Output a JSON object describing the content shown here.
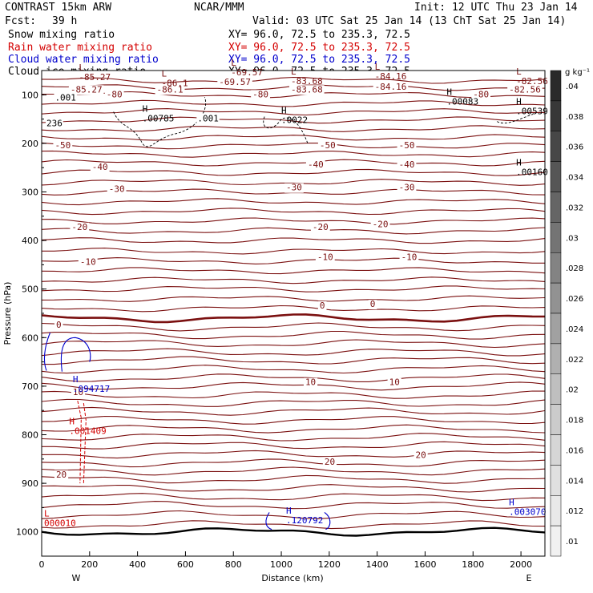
{
  "header": {
    "model": "CONTRAST 15km ARW",
    "center": "NCAR/MMM",
    "init": "Init: 12 UTC Thu 23 Jan 14",
    "fcst_label": "Fcst:",
    "fcst_value": "39 h",
    "valid": "Valid: 03 UTC Sat 25 Jan 14 (13 ChT Sat 25 Jan 14)"
  },
  "fields": [
    {
      "name": "Snow mixing ratio",
      "xy": "XY=  96.0, 72.5 to 235.3, 72.5",
      "color": "#000000"
    },
    {
      "name": "Rain water mixing ratio",
      "xy": "XY=  96.0, 72.5 to 235.3, 72.5",
      "color": "#d40000"
    },
    {
      "name": "Cloud water mixing ratio",
      "xy": "XY=  96.0, 72.5 to 235.3, 72.5",
      "color": "#0000cc"
    },
    {
      "name": "Cloud ice mixing ratio",
      "xy": "XY=  96.0, 72.5 to 235.3, 72.5",
      "color": "#000000"
    }
  ],
  "colorbar": {
    "unit": "g kg⁻¹",
    "levels": [
      "0.04",
      "0.038",
      "0.036",
      "0.034",
      "0.032",
      "0.03",
      "0.028",
      "0.026",
      "0.024",
      "0.022",
      "0.02",
      "0.018",
      "0.016",
      "0.014",
      "0.012",
      "0.01"
    ],
    "tick_labels": [
      ".04",
      ".038",
      ".036",
      ".034",
      ".032",
      ".03",
      ".028",
      ".026",
      ".024",
      ".022",
      ".02",
      ".018",
      ".016",
      ".014",
      ".012",
      ".01"
    ],
    "colors": [
      "#2a2a2a",
      "#383838",
      "#474747",
      "#565656",
      "#656565",
      "#747474",
      "#838383",
      "#929292",
      "#a1a1a1",
      "#b0b0b0",
      "#bfbfbf",
      "#cbcbcb",
      "#d6d6d6",
      "#e0e0e0",
      "#e9e9e9",
      "#f1f1f1"
    ]
  },
  "chart_data": {
    "type": "cross-section contour",
    "xlabel": "Distance (km)",
    "ylabel": "Pressure (hPa)",
    "xlim": [
      0,
      2100
    ],
    "ylim": [
      1050,
      50
    ],
    "x_ticks": [
      "0",
      "200",
      "400",
      "600",
      "800",
      "1000",
      "1200",
      "1400",
      "1600",
      "1800",
      "2000"
    ],
    "y_ticks": [
      "100",
      "200",
      "300",
      "400",
      "500",
      "600",
      "700",
      "800",
      "900",
      "1000"
    ],
    "x_end_labels": {
      "left": "W",
      "right": "E"
    },
    "temperature_contours": {
      "color": "#7b1010",
      "levels_hPa": [
        1000,
        985,
        965,
        945,
        928,
        910,
        892,
        875,
        858,
        840,
        822,
        805,
        788,
        770,
        752,
        735,
        718,
        700,
        683,
        665,
        647,
        630,
        612,
        595,
        578,
        560,
        540,
        520,
        500,
        482,
        462,
        442,
        422,
        400,
        380,
        360,
        340,
        320,
        300,
        280,
        260,
        240,
        222,
        205,
        188,
        170,
        152,
        135,
        118,
        100,
        85,
        70
      ],
      "labels": [
        {
          "text": "-85.27",
          "x": 120,
          "p": 95
        },
        {
          "text": "-86.1",
          "x": 480,
          "p": 95
        },
        {
          "text": "-69.57",
          "x": 740,
          "p": 80
        },
        {
          "text": "-83.68",
          "x": 1040,
          "p": 95
        },
        {
          "text": "-84.16",
          "x": 1390,
          "p": 90
        },
        {
          "text": "-82.56",
          "x": 1950,
          "p": 95
        },
        {
          "text": "-80",
          "x": 270,
          "p": 105
        },
        {
          "text": "-80",
          "x": 880,
          "p": 105
        },
        {
          "text": "-80",
          "x": 1800,
          "p": 105
        },
        {
          "text": "-50",
          "x": 55,
          "p": 210
        },
        {
          "text": "-50",
          "x": 1160,
          "p": 210
        },
        {
          "text": "-50",
          "x": 1490,
          "p": 210
        },
        {
          "text": "-40",
          "x": 210,
          "p": 255
        },
        {
          "text": "-40",
          "x": 1110,
          "p": 250
        },
        {
          "text": "-40",
          "x": 1490,
          "p": 250
        },
        {
          "text": "-30",
          "x": 280,
          "p": 300
        },
        {
          "text": "-30",
          "x": 1020,
          "p": 297
        },
        {
          "text": "-30",
          "x": 1490,
          "p": 297
        },
        {
          "text": "-20",
          "x": 125,
          "p": 378
        },
        {
          "text": "-20",
          "x": 1130,
          "p": 378
        },
        {
          "text": "-20",
          "x": 1380,
          "p": 373
        },
        {
          "text": "-10",
          "x": 160,
          "p": 450
        },
        {
          "text": "-10",
          "x": 1150,
          "p": 440
        },
        {
          "text": "-10",
          "x": 1500,
          "p": 440
        },
        {
          "text": "0",
          "x": 60,
          "p": 580
        },
        {
          "text": "0",
          "x": 1160,
          "p": 540
        },
        {
          "text": "0",
          "x": 1370,
          "p": 537
        },
        {
          "text": "10",
          "x": 130,
          "p": 718
        },
        {
          "text": "10",
          "x": 1100,
          "p": 698
        },
        {
          "text": "10",
          "x": 1450,
          "p": 698
        },
        {
          "text": "20",
          "x": 60,
          "p": 888
        },
        {
          "text": "20",
          "x": 1180,
          "p": 862
        },
        {
          "text": "20",
          "x": 1560,
          "p": 848
        }
      ]
    },
    "maxima": [
      {
        "mark": "L",
        "value": "-85.27",
        "x": 155,
        "p": 70,
        "color": "#7b1010"
      },
      {
        "mark": "L",
        "value": "-86.1",
        "x": 500,
        "p": 82,
        "color": "#7b1010"
      },
      {
        "mark": "L",
        "value": "-69.57",
        "x": 790,
        "p": 60,
        "color": "#7b1010"
      },
      {
        "mark": "L",
        "value": "-83.68",
        "x": 1040,
        "p": 78,
        "color": "#7b1010"
      },
      {
        "mark": "L",
        "value": "-84.16",
        "x": 1390,
        "p": 68,
        "color": "#7b1010"
      },
      {
        "mark": "L",
        "value": "-82.56",
        "x": 1980,
        "p": 78,
        "color": "#7b1010"
      },
      {
        "mark": "H",
        "value": ".00785",
        "x": 420,
        "p": 155,
        "color": "#000000"
      },
      {
        "mark": "H",
        "value": ".0022",
        "x": 1000,
        "p": 158,
        "color": "#000000"
      },
      {
        "mark": "H",
        "value": ".00083",
        "x": 1690,
        "p": 120,
        "color": "#000000"
      },
      {
        "mark": "H",
        "value": ".00539",
        "x": 1980,
        "p": 140,
        "color": "#000000"
      },
      {
        "mark": "H",
        "value": ".00160",
        "x": 1980,
        "p": 265,
        "color": "#000000"
      },
      {
        "mark": "H",
        "value": ".094717",
        "x": 130,
        "p": 712,
        "color": "#0000cc"
      },
      {
        "mark": "H",
        "value": ".001409",
        "x": 115,
        "p": 798,
        "color": "#d40000"
      },
      {
        "mark": "L",
        "value": "000010",
        "x": 10,
        "p": 988,
        "color": "#d40000"
      },
      {
        "mark": "H",
        "value": ".120792",
        "x": 1020,
        "p": 982,
        "color": "#0000cc"
      },
      {
        "mark": "H",
        "value": ".003070",
        "x": 1950,
        "p": 965,
        "color": "#0000cc"
      }
    ],
    "ice_labels": [
      {
        "text": ".001",
        "x": 55,
        "p": 112
      },
      {
        "text": ".001",
        "x": 650,
        "p": 155
      },
      {
        "text": "236",
        "x": 20,
        "p": 165
      }
    ]
  }
}
